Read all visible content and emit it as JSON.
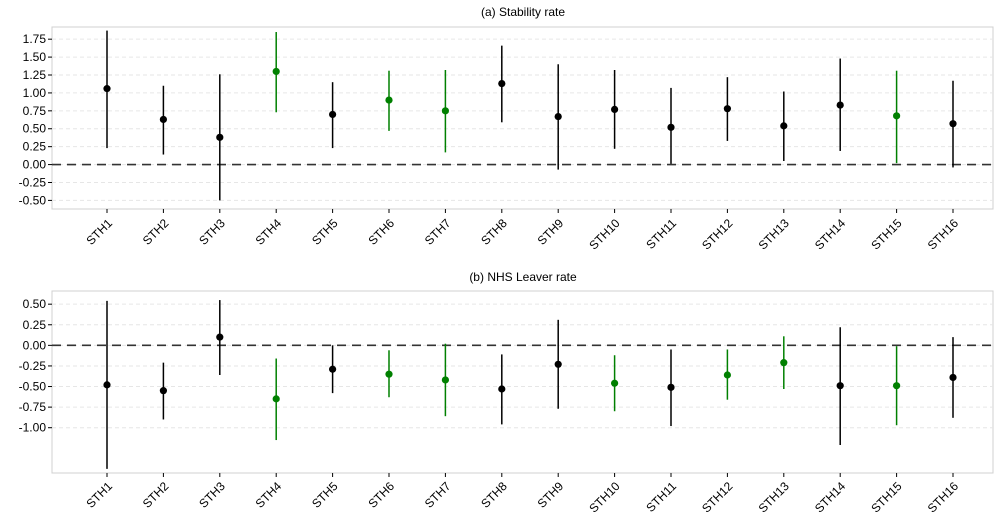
{
  "chart_data": [
    {
      "type": "scatter",
      "title": "(a) Stability rate",
      "categories": [
        "STH1",
        "STH2",
        "STH3",
        "STH4",
        "STH5",
        "STH6",
        "STH7",
        "STH8",
        "STH9",
        "STH10",
        "STH11",
        "STH12",
        "STH13",
        "STH14",
        "STH15",
        "STH16"
      ],
      "estimates": [
        1.06,
        0.63,
        0.38,
        1.3,
        0.7,
        0.9,
        0.75,
        1.13,
        0.67,
        0.77,
        0.52,
        0.78,
        0.54,
        0.83,
        0.68,
        0.57
      ],
      "ci_lower": [
        0.23,
        0.14,
        -0.5,
        0.73,
        0.23,
        0.47,
        0.17,
        0.59,
        -0.07,
        0.22,
        0.01,
        0.33,
        0.05,
        0.19,
        0.02,
        -0.04
      ],
      "ci_upper": [
        1.87,
        1.1,
        1.26,
        1.85,
        1.15,
        1.31,
        1.32,
        1.66,
        1.4,
        1.32,
        1.07,
        1.22,
        1.02,
        1.48,
        1.31,
        1.17
      ],
      "colors": [
        "#000000",
        "#000000",
        "#000000",
        "#008000",
        "#000000",
        "#008000",
        "#008000",
        "#000000",
        "#000000",
        "#000000",
        "#000000",
        "#000000",
        "#000000",
        "#000000",
        "#008000",
        "#000000"
      ],
      "yticks": [
        1.75,
        1.5,
        1.25,
        1.0,
        0.75,
        0.5,
        0.25,
        0.0,
        -0.25,
        -0.5
      ],
      "ytick_labels": [
        "1.75",
        "1.50",
        "1.25",
        "1.00",
        "0.75",
        "0.50",
        "0.25",
        "0.00",
        "-0.25",
        "-0.50"
      ],
      "ylim": [
        -0.62,
        1.92
      ],
      "reference_line": 0,
      "grid": true
    },
    {
      "type": "scatter",
      "title": "(b) NHS Leaver rate",
      "categories": [
        "STH1",
        "STH2",
        "STH3",
        "STH4",
        "STH5",
        "STH6",
        "STH7",
        "STH8",
        "STH9",
        "STH10",
        "STH11",
        "STH12",
        "STH13",
        "STH14",
        "STH15",
        "STH16"
      ],
      "estimates": [
        -0.48,
        -0.55,
        0.1,
        -0.65,
        -0.29,
        -0.35,
        -0.42,
        -0.53,
        -0.23,
        -0.46,
        -0.51,
        -0.36,
        -0.21,
        -0.49,
        -0.49,
        -0.39
      ],
      "ci_lower": [
        -1.5,
        -0.9,
        -0.36,
        -1.15,
        -0.58,
        -0.63,
        -0.86,
        -0.96,
        -0.77,
        -0.8,
        -0.98,
        -0.66,
        -0.53,
        -1.21,
        -0.97,
        -0.88
      ],
      "ci_upper": [
        0.54,
        -0.21,
        0.55,
        -0.16,
        0.0,
        -0.06,
        0.02,
        -0.11,
        0.31,
        -0.12,
        -0.05,
        -0.05,
        0.11,
        0.22,
        -0.01,
        0.1
      ],
      "colors": [
        "#000000",
        "#000000",
        "#000000",
        "#008000",
        "#000000",
        "#008000",
        "#008000",
        "#000000",
        "#000000",
        "#008000",
        "#000000",
        "#008000",
        "#008000",
        "#000000",
        "#008000",
        "#000000"
      ],
      "yticks": [
        0.5,
        0.25,
        0.0,
        -0.25,
        -0.5,
        -0.75,
        -1.0
      ],
      "ytick_labels": [
        "0.50",
        "0.25",
        "0.00",
        "-0.25",
        "-0.50",
        "-0.75",
        "-1.00"
      ],
      "ylim": [
        -1.55,
        0.66
      ],
      "reference_line": 0,
      "grid": true
    }
  ]
}
